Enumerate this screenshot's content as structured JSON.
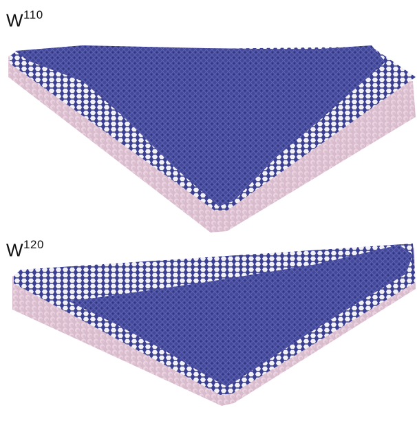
{
  "panels": [
    {
      "label_base": "W",
      "label_sup": "110"
    },
    {
      "label_base": "W",
      "label_sup": "120"
    }
  ],
  "colors": {
    "background": "#ffffff",
    "graphene_sheet": "#4a4fa0",
    "sheet_dark": "#2f3380",
    "mesh_line": "#6c72c4",
    "substrate_atom": "#e2c4d6",
    "substrate_shadow": "#a8909e",
    "substrate_base": "#d6b8ca"
  }
}
